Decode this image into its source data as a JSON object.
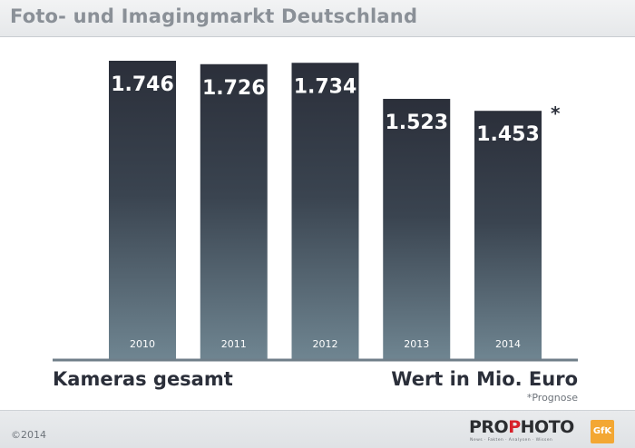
{
  "header": {
    "title": "Foto- und Imagingmarkt Deutschland"
  },
  "chart_data": {
    "type": "bar",
    "categories": [
      "2010",
      "2011",
      "2012",
      "2013",
      "2014"
    ],
    "values": [
      1746,
      1726,
      1734,
      1523,
      1453
    ],
    "value_labels": [
      "1.746",
      "1.726",
      "1.734",
      "1.523",
      "1.453"
    ],
    "title": "Foto- und Imagingmarkt Deutschland",
    "xlabel": "Kameras gesamt",
    "ylabel": "Wert in Mio. Euro",
    "forecast_marker": "*",
    "forecast_category": "2014",
    "footnote": "*Prognose",
    "grid": false,
    "colors": {
      "bar_top": "#2b2f3a",
      "bar_bottom": "#6f8591",
      "axis": "#6f7e89"
    }
  },
  "footer": {
    "copyright": "©2014",
    "brand_pre": "PRO",
    "brand_accent": "P",
    "brand_post": "HOTO",
    "brand_tagline": "News · Fakten · Analysen · Wissen",
    "partner_logo": "GfK"
  }
}
